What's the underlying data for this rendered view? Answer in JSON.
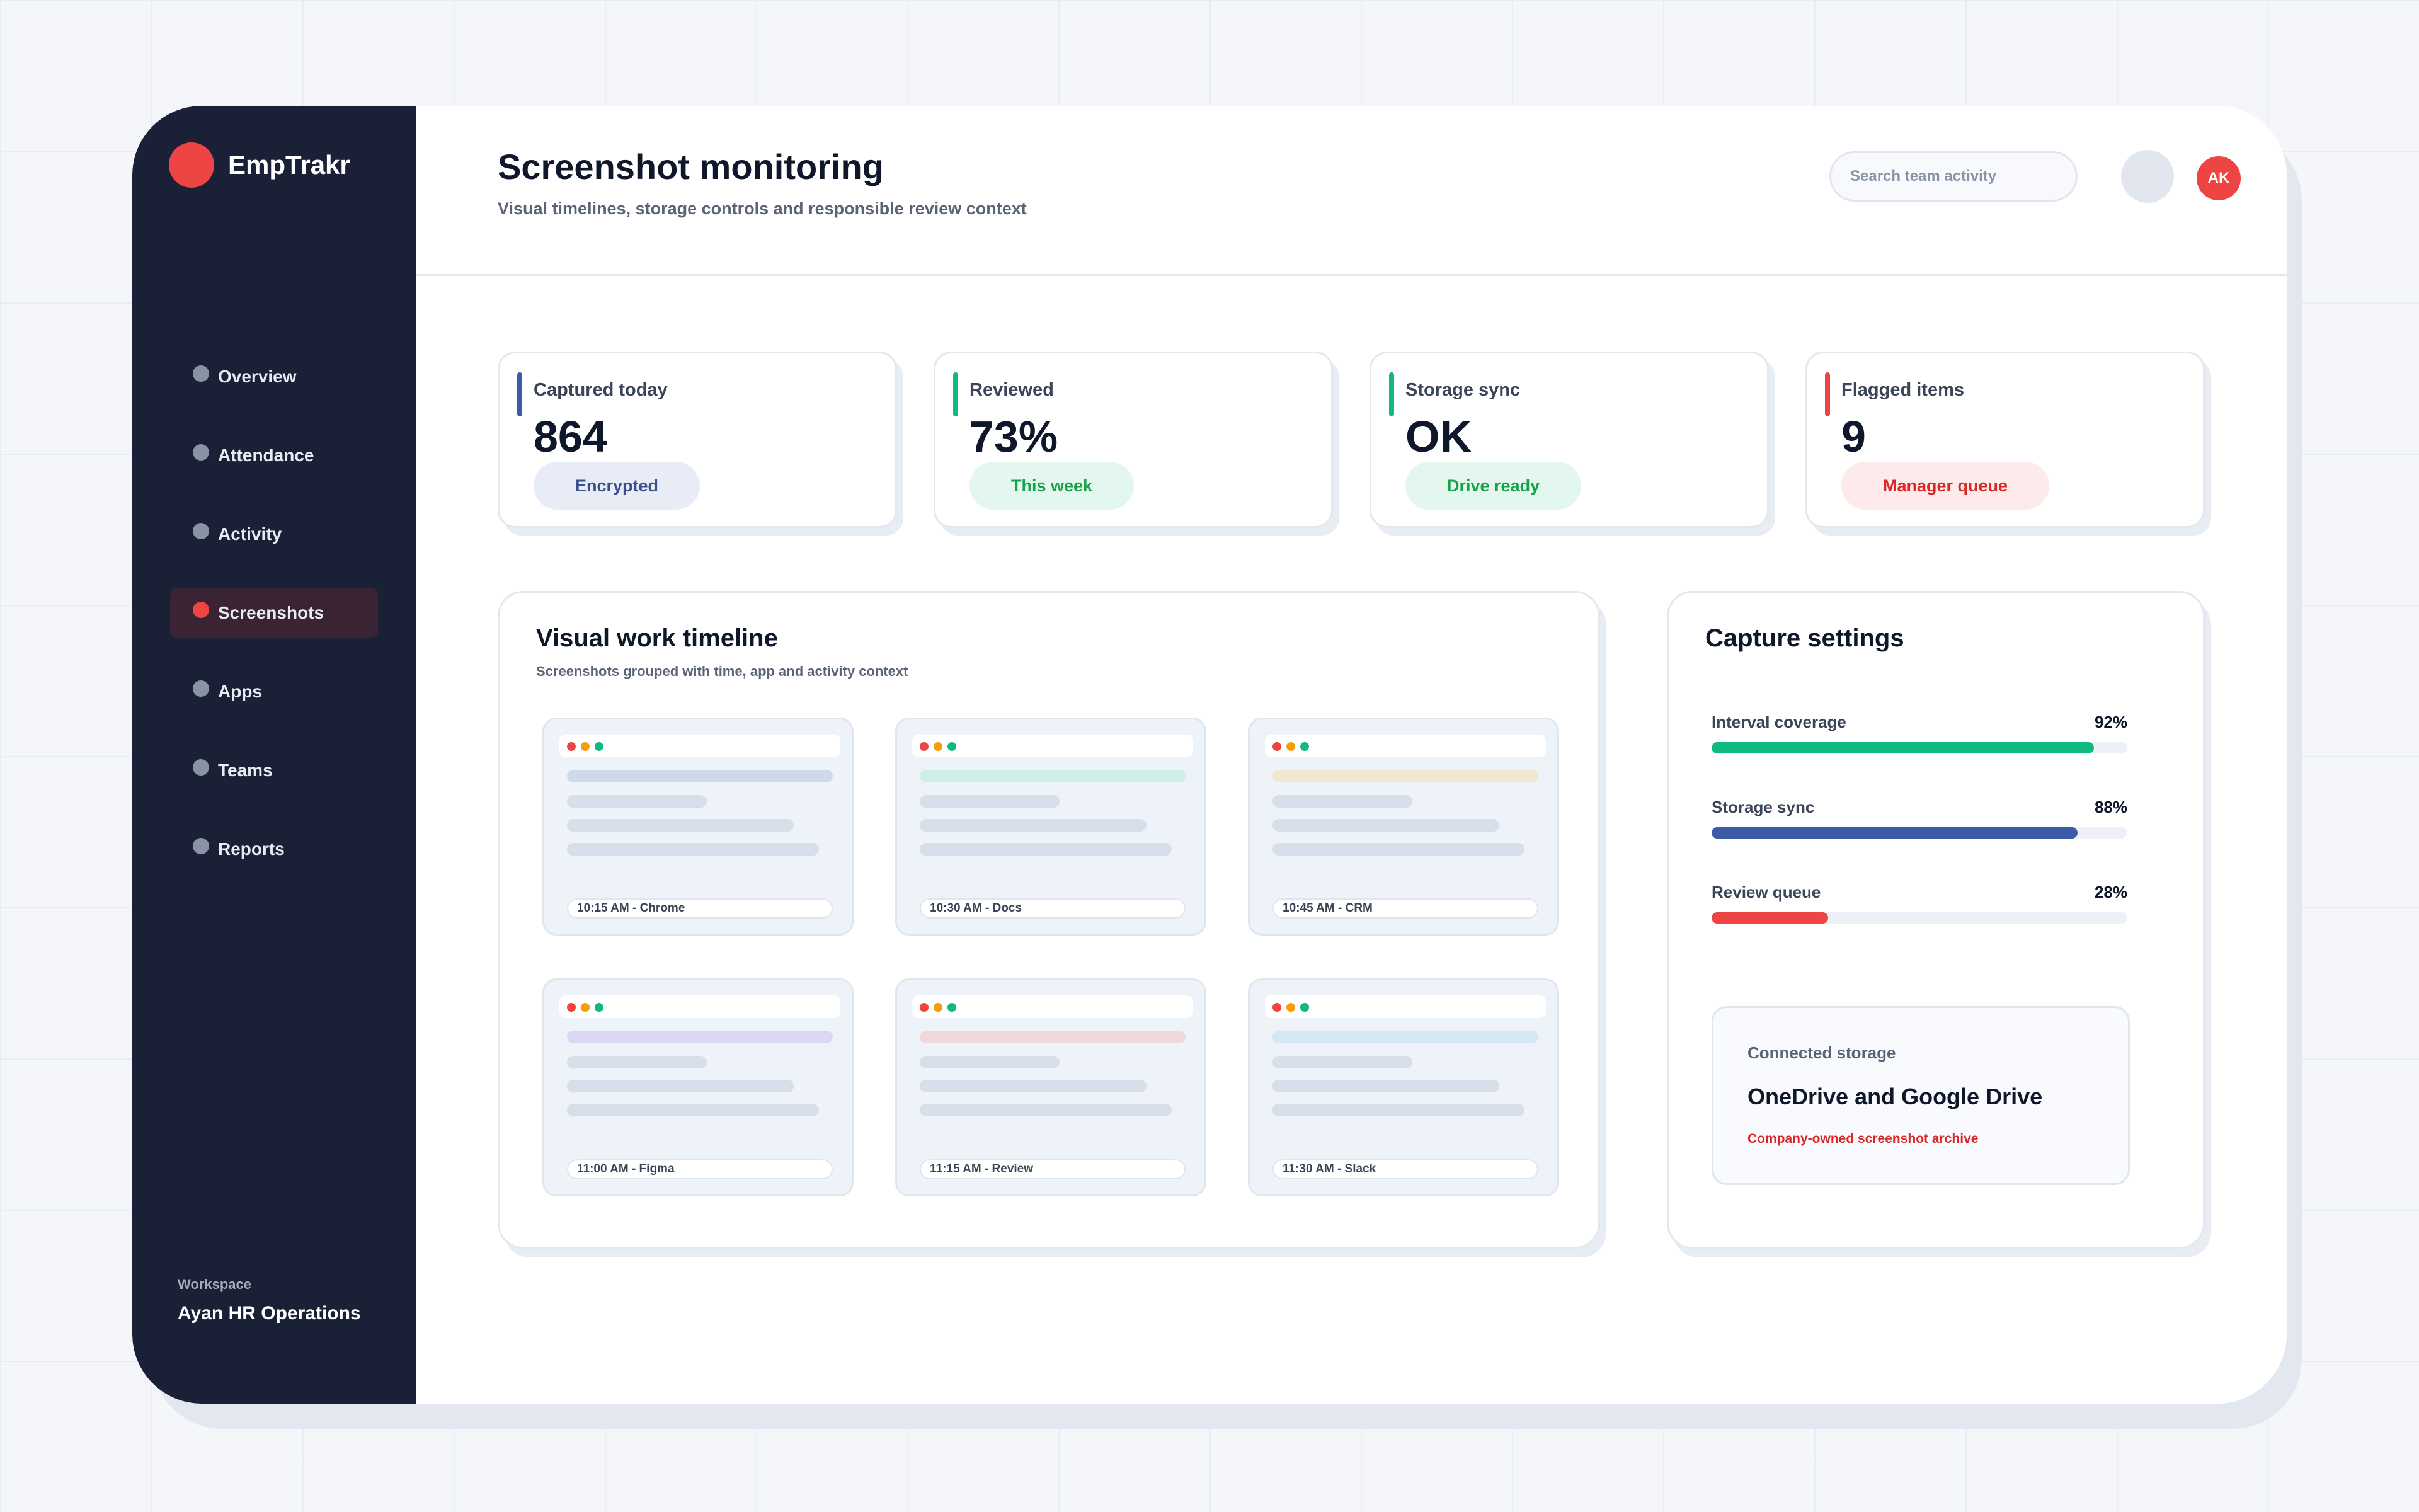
{
  "app": {
    "name": "EmpTrakr"
  },
  "sidebar": {
    "items": [
      {
        "label": "Overview",
        "active": false
      },
      {
        "label": "Attendance",
        "active": false
      },
      {
        "label": "Activity",
        "active": false
      },
      {
        "label": "Screenshots",
        "active": true
      },
      {
        "label": "Apps",
        "active": false
      },
      {
        "label": "Teams",
        "active": false
      },
      {
        "label": "Reports",
        "active": false
      }
    ],
    "workspace_label": "Workspace",
    "workspace_name": "Ayan HR Operations"
  },
  "header": {
    "title": "Screenshot monitoring",
    "subtitle": "Visual timelines, storage controls and responsible review context",
    "search_placeholder": "Search team activity",
    "avatar_initials": "AK"
  },
  "stats": [
    {
      "label": "Captured today",
      "value": "864",
      "badge": "Encrypted",
      "accent": "#3b5aa8",
      "badge_bg": "#e8ecf7",
      "badge_fg": "#3b4f8a"
    },
    {
      "label": "Reviewed",
      "value": "73%",
      "badge": "This week",
      "accent": "#10b981",
      "badge_bg": "#e3f7ef",
      "badge_fg": "#16a34a"
    },
    {
      "label": "Storage sync",
      "value": "OK",
      "badge": "Drive ready",
      "accent": "#10b981",
      "badge_bg": "#e3f7ef",
      "badge_fg": "#16a34a"
    },
    {
      "label": "Flagged items",
      "value": "9",
      "badge": "Manager queue",
      "accent": "#ef4444",
      "badge_bg": "#fdebeb",
      "badge_fg": "#dc2626"
    }
  ],
  "timeline": {
    "title": "Visual work timeline",
    "subtitle": "Screenshots grouped with time, app and activity context",
    "items": [
      {
        "caption": "10:15 AM - Chrome",
        "highlight": "#cfd9ec"
      },
      {
        "caption": "10:30 AM - Docs",
        "highlight": "#cfeee6"
      },
      {
        "caption": "10:45 AM - CRM",
        "highlight": "#f1e7cf"
      },
      {
        "caption": "11:00 AM - Figma",
        "highlight": "#dcd8f3"
      },
      {
        "caption": "11:15 AM - Review",
        "highlight": "#f2d8dc"
      },
      {
        "caption": "11:30 AM - Slack",
        "highlight": "#d3e7f5"
      }
    ]
  },
  "capture_settings": {
    "title": "Capture settings",
    "bars": [
      {
        "label": "Interval coverage",
        "value_text": "92%",
        "value": 0.92,
        "color": "#10b981"
      },
      {
        "label": "Storage sync",
        "value_text": "88%",
        "value": 0.88,
        "color": "#3b5aa8"
      },
      {
        "label": "Review queue",
        "value_text": "28%",
        "value": 0.28,
        "color": "#ef4444"
      }
    ],
    "storage": {
      "label": "Connected storage",
      "title": "OneDrive and Google Drive",
      "subtitle": "Company-owned screenshot archive"
    }
  }
}
